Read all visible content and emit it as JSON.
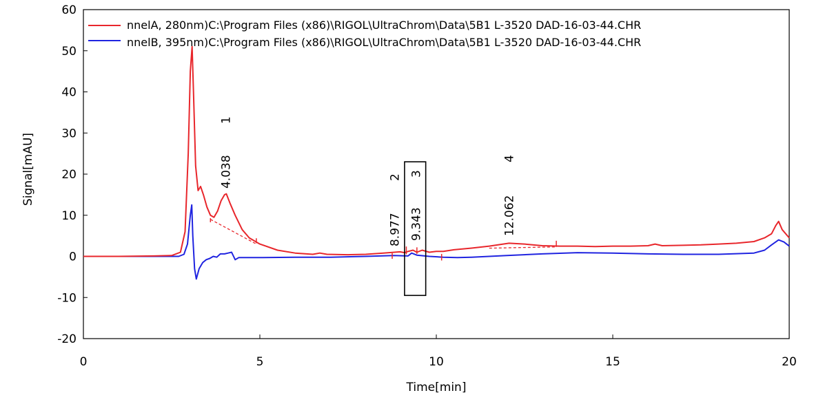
{
  "chart_data": {
    "type": "line",
    "xlabel": "Time[min]",
    "ylabel": "Signal[mAU]",
    "xlim": [
      0,
      20
    ],
    "ylim": [
      -20,
      60
    ],
    "x_ticks": [
      "0",
      "5",
      "10",
      "15",
      "20"
    ],
    "y_ticks": [
      "60",
      "50",
      "40",
      "30",
      "20",
      "10",
      "0",
      "-10",
      "-20"
    ],
    "legend_position": "top-left",
    "series": [
      {
        "name": "nnelA, 280nm)C:\\Program Files (x86)\\RIGOL\\UltraChrom\\Data\\5B1 L-3520 DAD-16-03-44.CHR",
        "color": "#e8262b",
        "points": [
          [
            0,
            0
          ],
          [
            1,
            0
          ],
          [
            2,
            0.1
          ],
          [
            2.5,
            0.2
          ],
          [
            2.75,
            1
          ],
          [
            2.88,
            6
          ],
          [
            2.97,
            25
          ],
          [
            3.03,
            45
          ],
          [
            3.08,
            51
          ],
          [
            3.12,
            40
          ],
          [
            3.18,
            22
          ],
          [
            3.25,
            16
          ],
          [
            3.32,
            17
          ],
          [
            3.4,
            15
          ],
          [
            3.5,
            12
          ],
          [
            3.6,
            10
          ],
          [
            3.7,
            9.5
          ],
          [
            3.8,
            11
          ],
          [
            3.9,
            13.5
          ],
          [
            4.0,
            15
          ],
          [
            4.05,
            15.2
          ],
          [
            4.15,
            13
          ],
          [
            4.3,
            10
          ],
          [
            4.5,
            6.5
          ],
          [
            4.7,
            4.5
          ],
          [
            5.0,
            3
          ],
          [
            5.5,
            1.5
          ],
          [
            6.0,
            0.8
          ],
          [
            6.5,
            0.5
          ],
          [
            6.7,
            0.8
          ],
          [
            6.9,
            0.5
          ],
          [
            7.5,
            0.4
          ],
          [
            8.0,
            0.5
          ],
          [
            8.5,
            0.8
          ],
          [
            8.97,
            1.1
          ],
          [
            9.1,
            0.9
          ],
          [
            9.2,
            1.2
          ],
          [
            9.34,
            1.5
          ],
          [
            9.45,
            1.0
          ],
          [
            9.6,
            1.5
          ],
          [
            9.8,
            1.0
          ],
          [
            10.0,
            1.2
          ],
          [
            10.2,
            1.2
          ],
          [
            10.5,
            1.6
          ],
          [
            11.0,
            2.0
          ],
          [
            11.5,
            2.5
          ],
          [
            12.06,
            3.2
          ],
          [
            12.5,
            3.0
          ],
          [
            13.0,
            2.6
          ],
          [
            13.5,
            2.5
          ],
          [
            14.0,
            2.5
          ],
          [
            14.5,
            2.4
          ],
          [
            15.0,
            2.5
          ],
          [
            15.5,
            2.5
          ],
          [
            16.0,
            2.6
          ],
          [
            16.2,
            3.0
          ],
          [
            16.4,
            2.6
          ],
          [
            17.0,
            2.7
          ],
          [
            17.5,
            2.8
          ],
          [
            18.0,
            3.0
          ],
          [
            18.5,
            3.2
          ],
          [
            19.0,
            3.6
          ],
          [
            19.3,
            4.5
          ],
          [
            19.5,
            5.5
          ],
          [
            19.62,
            7.5
          ],
          [
            19.7,
            8.5
          ],
          [
            19.8,
            6.5
          ],
          [
            20.0,
            4.5
          ]
        ]
      },
      {
        "name": "nnelB, 395nm)C:\\Program Files (x86)\\RIGOL\\UltraChrom\\Data\\5B1 L-3520 DAD-16-03-44.CHR",
        "color": "#1f23e0",
        "points": [
          [
            0,
            0
          ],
          [
            1,
            0
          ],
          [
            2,
            0
          ],
          [
            2.7,
            0
          ],
          [
            2.85,
            0.5
          ],
          [
            2.95,
            3
          ],
          [
            3.03,
            10
          ],
          [
            3.07,
            12.5
          ],
          [
            3.1,
            5
          ],
          [
            3.15,
            -3
          ],
          [
            3.2,
            -5.5
          ],
          [
            3.28,
            -3
          ],
          [
            3.38,
            -1.5
          ],
          [
            3.48,
            -0.8
          ],
          [
            3.58,
            -0.5
          ],
          [
            3.68,
            0
          ],
          [
            3.78,
            -0.2
          ],
          [
            3.88,
            0.6
          ],
          [
            4.0,
            0.6
          ],
          [
            4.1,
            0.8
          ],
          [
            4.2,
            1.0
          ],
          [
            4.3,
            -0.8
          ],
          [
            4.4,
            -0.3
          ],
          [
            5.0,
            -0.3
          ],
          [
            6.0,
            -0.2
          ],
          [
            7.0,
            -0.2
          ],
          [
            8.0,
            0
          ],
          [
            8.8,
            0.2
          ],
          [
            9.2,
            0.1
          ],
          [
            9.3,
            0.8
          ],
          [
            9.45,
            0.3
          ],
          [
            9.8,
            0
          ],
          [
            10.2,
            -0.2
          ],
          [
            10.6,
            -0.3
          ],
          [
            11.0,
            -0.2
          ],
          [
            12.0,
            0.2
          ],
          [
            13.0,
            0.6
          ],
          [
            14.0,
            0.9
          ],
          [
            15.0,
            0.8
          ],
          [
            16.0,
            0.6
          ],
          [
            17.0,
            0.5
          ],
          [
            18.0,
            0.5
          ],
          [
            19.0,
            0.8
          ],
          [
            19.3,
            1.5
          ],
          [
            19.5,
            2.8
          ],
          [
            19.7,
            4.0
          ],
          [
            19.85,
            3.5
          ],
          [
            20.0,
            2.5
          ]
        ]
      }
    ],
    "peaks": [
      {
        "number": "1",
        "time": "4.038",
        "x": 4.038
      },
      {
        "number": "2",
        "time": "8.977",
        "x": 8.977
      },
      {
        "number": "3",
        "time": "9.343",
        "x": 9.343
      },
      {
        "number": "4",
        "time": "12.062",
        "x": 12.062
      }
    ],
    "baselines": [
      {
        "from": [
          3.6,
          9.0
        ],
        "to": [
          4.9,
          3.0
        ]
      },
      {
        "from": [
          11.5,
          2.0
        ],
        "to": [
          13.4,
          2.3
        ]
      }
    ],
    "peak_marks": [
      {
        "x": 3.6,
        "y": 8.3,
        "y2": 9.3
      },
      {
        "x": 4.9,
        "y": 3.2,
        "y2": 4.4
      },
      {
        "x": 8.75,
        "y": -0.6,
        "y2": 0.8
      },
      {
        "x": 9.15,
        "y": 0.5,
        "y2": 2.4
      },
      {
        "x": 9.45,
        "y": 0.6,
        "y2": 2.2
      },
      {
        "x": 10.15,
        "y": -1.0,
        "y2": 0.6
      },
      {
        "x": 13.4,
        "y": 2.3,
        "y2": 3.8
      }
    ],
    "highlight_box": {
      "x0": 9.1,
      "x1": 9.7,
      "y0": -9.5,
      "y1": 23
    },
    "frame_color": "#000000"
  }
}
